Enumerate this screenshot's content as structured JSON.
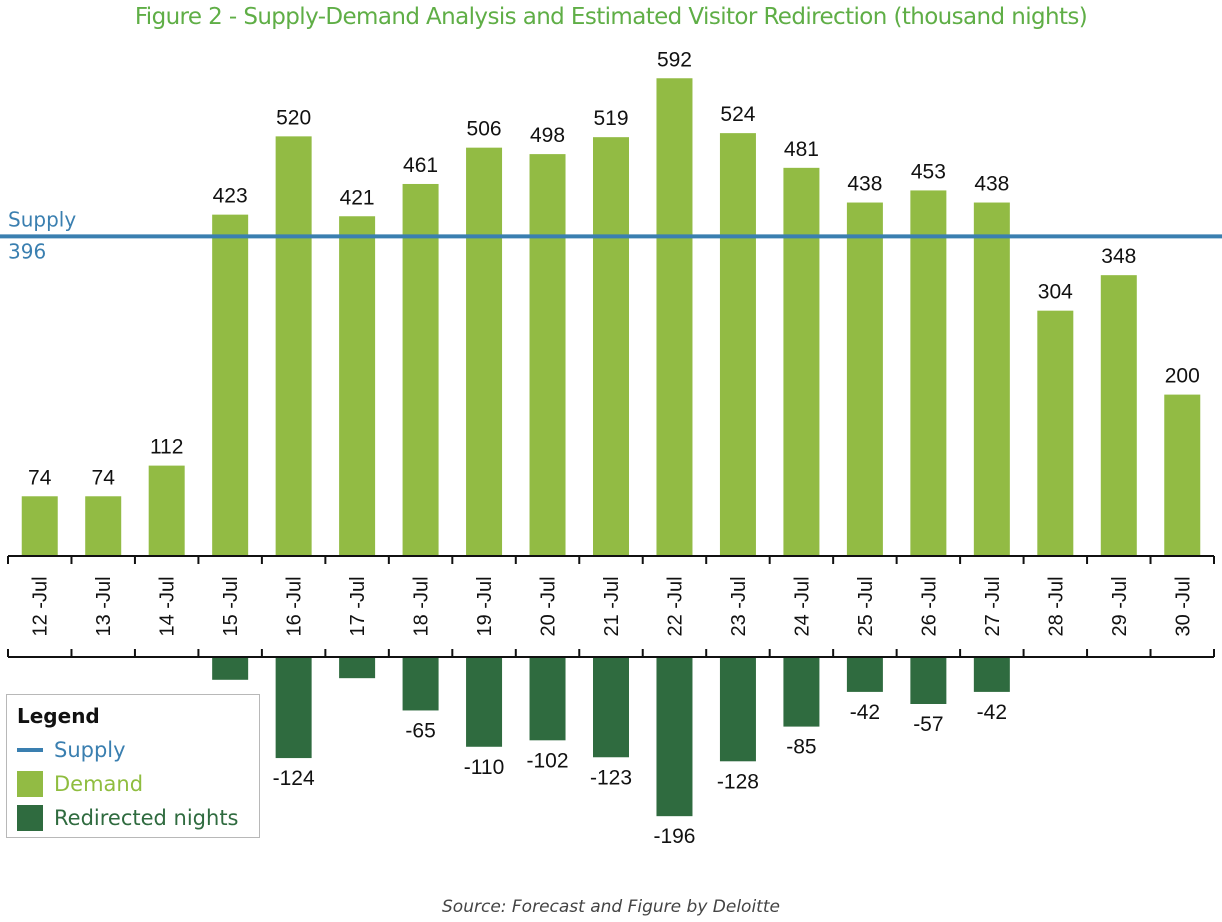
{
  "chart_data": {
    "type": "bar",
    "title": "Figure 2 - Supply-Demand Analysis and Estimated Visitor Redirection (thousand nights)",
    "xlabel": "",
    "ylabel": "",
    "units": "thousand nights",
    "grid": false,
    "categories": [
      "12-Jul",
      "13-Jul",
      "14-Jul",
      "15-Jul",
      "16-Jul",
      "17-Jul",
      "18-Jul",
      "19-Jul",
      "20-Jul",
      "21-Jul",
      "22-Jul",
      "23-Jul",
      "24-Jul",
      "25-Jul",
      "26-Jul",
      "27-Jul",
      "28-Jul",
      "29-Jul",
      "30-Jul"
    ],
    "series": [
      {
        "name": "Demand",
        "kind": "bar",
        "color": "#92bb44",
        "values": [
          74,
          74,
          112,
          423,
          520,
          421,
          461,
          506,
          498,
          519,
          592,
          524,
          481,
          438,
          453,
          438,
          304,
          348,
          200
        ],
        "labels": [
          "74",
          "74",
          "112",
          "423",
          "520",
          "421",
          "461",
          "506",
          "498",
          "519",
          "592",
          "524",
          "481",
          "438",
          "453",
          "438",
          "304",
          "348",
          "200"
        ]
      },
      {
        "name": "Redirected nights",
        "kind": "bar",
        "color": "#2f6b3f",
        "values": [
          null,
          null,
          null,
          -27,
          -124,
          -25,
          -65,
          -110,
          -102,
          -123,
          -196,
          -128,
          -85,
          -42,
          -57,
          -42,
          null,
          null,
          null
        ],
        "labels": [
          "",
          "",
          "",
          "",
          "-124",
          "",
          "-65",
          "-110",
          "-102",
          "-123",
          "-196",
          "-128",
          "-85",
          "-42",
          "-57",
          "-42",
          "",
          "",
          ""
        ]
      },
      {
        "name": "Supply",
        "kind": "line",
        "color": "#3a7fb0",
        "value": 396
      }
    ],
    "supply_annotation": {
      "name": "Supply",
      "value": "396"
    },
    "ylim_demand": [
      0,
      600
    ],
    "ylim_redirected": [
      -200,
      0
    ],
    "legend": {
      "title": "Legend",
      "placement": "bottom-left",
      "items": [
        {
          "label": "Supply",
          "type": "line",
          "color": "#3a7fb0"
        },
        {
          "label": "Demand",
          "type": "box",
          "color": "#92bb44",
          "text_color": "#8fbd3f"
        },
        {
          "label": "Redirected nights",
          "type": "box",
          "color": "#2f6b3f",
          "text_color": "#2f6b3f"
        }
      ]
    },
    "source": "Source: Forecast and Figure by Deloitte"
  }
}
